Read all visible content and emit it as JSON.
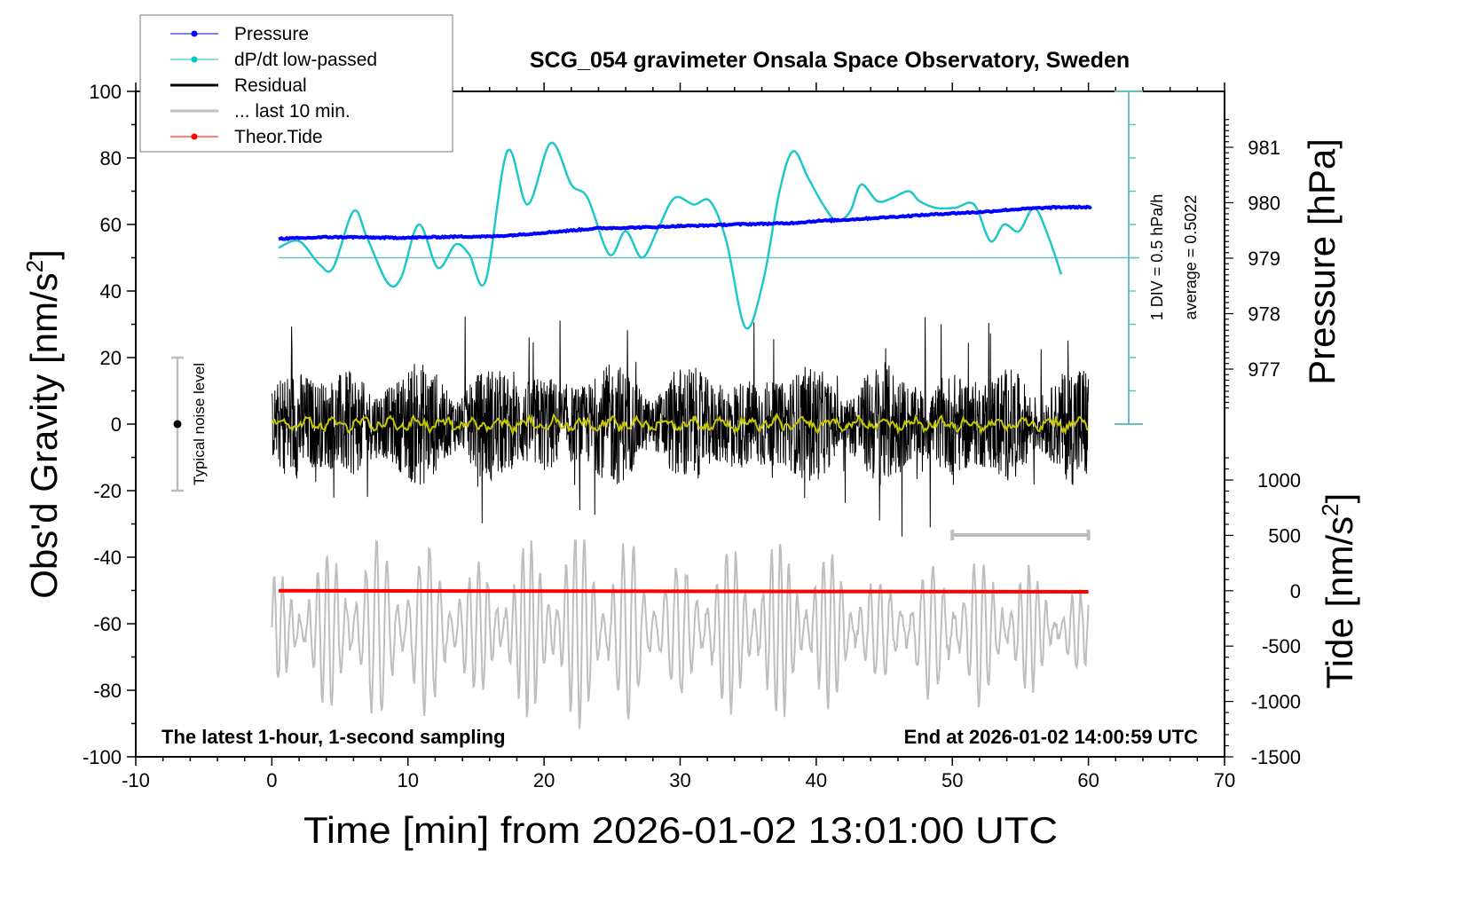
{
  "chart_data": {
    "type": "line",
    "title": "SCG_054 gravimeter Onsala Space Observatory, Sweden",
    "xlabel": "Time [min] from 2026-01-02 13:01:00 UTC",
    "ylabel": "Obs'd Gravity [nm/s",
    "ylabel_sup": "2",
    "ylabel_close": "]",
    "y2label": "Pressure [hPa]",
    "y3label": "Tide [nm/s",
    "y3label_sup": "2",
    "y3label_close": "]",
    "xlim": [
      -10,
      70
    ],
    "ylim": [
      -100,
      100
    ],
    "pressure_lim": [
      977,
      981
    ],
    "tide_lim": [
      -1500,
      1000
    ],
    "x_ticks": [
      "-10",
      "0",
      "10",
      "20",
      "30",
      "40",
      "50",
      "60",
      "70"
    ],
    "x_tick_values": [
      -10,
      0,
      10,
      20,
      30,
      40,
      50,
      60,
      70
    ],
    "y_ticks": [
      "100",
      "80",
      "60",
      "40",
      "20",
      "0",
      "-20",
      "-40",
      "-60",
      "-80",
      "-100"
    ],
    "y_tick_values": [
      100,
      80,
      60,
      40,
      20,
      0,
      -20,
      -40,
      -60,
      -80,
      -100
    ],
    "pressure_ticks": [
      "981",
      "980",
      "979",
      "978",
      "977"
    ],
    "pressure_tick_values": [
      981,
      980,
      979,
      978,
      977
    ],
    "tide_ticks": [
      "1000",
      "500",
      "0",
      "-500",
      "-1000",
      "-1500"
    ],
    "tide_tick_values": [
      1000,
      500,
      0,
      -500,
      -1000,
      -1500
    ],
    "legend": [
      {
        "label": "Pressure",
        "color": "#0000ff",
        "marker": "dot"
      },
      {
        "label": "dP/dt low-passed",
        "color": "#00c8c8",
        "marker": "dot"
      },
      {
        "label": "Residual",
        "color": "#000000",
        "marker": "line"
      },
      {
        "label": "... last 10 min.",
        "color": "#bebebe",
        "marker": "line"
      },
      {
        "label": "Theor.Tide",
        "color": "#ff0000",
        "marker": "dot"
      }
    ],
    "legend_position": "top-left",
    "colors": {
      "pressure": "#0000ff",
      "dpdt": "#1ec8c8",
      "dpdt_axis": "#66c0c0",
      "residual": "#000000",
      "residual_smooth": "#c8c800",
      "last10": "#bebebe",
      "tide": "#ff0000",
      "noise_bar": "#bebebe"
    },
    "series": [
      {
        "name": "Pressure",
        "units": "hPa",
        "x": [
          0,
          2,
          4,
          6,
          8,
          10,
          12,
          14,
          16,
          18,
          20,
          22,
          24,
          26,
          28,
          30,
          32,
          34,
          36,
          38,
          40,
          42,
          44,
          46,
          48,
          50,
          52,
          54,
          56,
          58,
          60
        ],
        "values": [
          979.35,
          979.36,
          979.38,
          979.38,
          979.37,
          979.37,
          979.38,
          979.39,
          979.39,
          979.42,
          979.46,
          979.5,
          979.54,
          979.55,
          979.56,
          979.58,
          979.59,
          979.61,
          979.62,
          979.63,
          979.67,
          979.69,
          979.72,
          979.75,
          979.78,
          979.81,
          979.83,
          979.87,
          979.9,
          979.92,
          979.92
        ]
      },
      {
        "name": "dP/dt low-passed",
        "units": "nm/s2 axis position",
        "x": [
          0.5,
          2,
          3.5,
          4.5,
          6,
          7,
          8.5,
          9.5,
          10.8,
          12.2,
          13.5,
          14.5,
          15.7,
          17.3,
          18.8,
          20.5,
          22,
          23.2,
          24.8,
          26,
          27.2,
          28.4,
          29.6,
          31,
          32.2,
          33.4,
          34.8,
          36.1,
          37.3,
          38.3,
          39.4,
          40.5,
          41.5,
          42.5,
          43.3,
          44.5,
          45.6,
          46.8,
          47.6,
          48.8,
          50.2,
          51.6,
          52.8,
          53.8,
          54.9,
          56,
          57,
          58
        ],
        "values": [
          53,
          55,
          48,
          47,
          64,
          56,
          42.5,
          44,
          60,
          47,
          54,
          51,
          43,
          82,
          66,
          84.5,
          72,
          68,
          51,
          58,
          50,
          59,
          68,
          66,
          67,
          55,
          29,
          43,
          70,
          82,
          74,
          66,
          61,
          64,
          72,
          67,
          68,
          70,
          67,
          65,
          65,
          66,
          55,
          60,
          58,
          65,
          57,
          45
        ]
      },
      {
        "name": "Residual",
        "units": "nm/s2",
        "x_range": [
          0,
          60
        ],
        "amplitude_typical": 15,
        "amplitude_max": 36
      },
      {
        "name": "... last 10 min.",
        "units": "nm/s2 (tide axis)",
        "x_range": [
          0,
          60
        ],
        "amplitude_typical": 700
      },
      {
        "name": "Theor.Tide",
        "units": "nm/s2",
        "x": [
          0.5,
          60
        ],
        "values": [
          0,
          -10
        ]
      }
    ],
    "annotations": {
      "dpdt_scale": "1 DIV = 0.5 hPa/h",
      "dpdt_average": "average = 0.5022",
      "noise_label": "Typical noise level",
      "noise_range": [
        -20,
        20
      ],
      "last10_bar_range": [
        50,
        60
      ],
      "bottom_left_note": "The latest 1-hour, 1-second sampling",
      "bottom_right_note": "End at 2026-01-02 14:00:59 UTC"
    }
  }
}
